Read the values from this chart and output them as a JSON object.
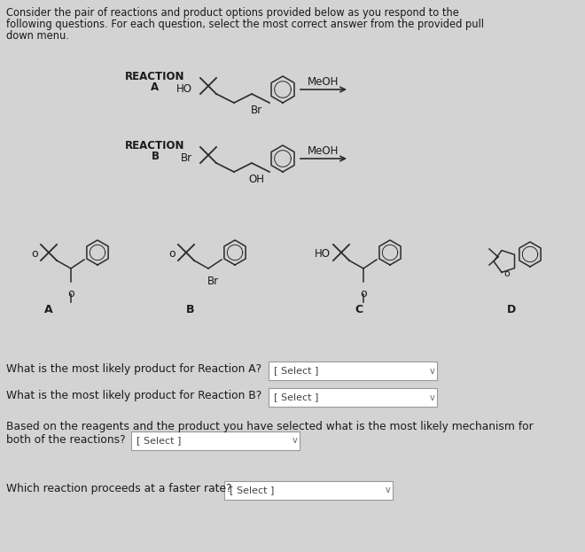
{
  "bg_color": "#d3d3d3",
  "title_line1": "Consider the pair of reactions and product options provided below as you respond to the",
  "title_line2": "following questions. For each question, select the most correct answer from the provided pull",
  "title_line3": "down menu.",
  "reaction_a_label1": "REACTION",
  "reaction_a_label2": "A",
  "reaction_b_label1": "REACTION",
  "reaction_b_label2": "B",
  "meoh": "MeOH",
  "ho": "HO",
  "br": "Br",
  "oh": "OH",
  "product_labels": [
    "A",
    "B",
    "C",
    "D"
  ],
  "q1": "What is the most likely product for Reaction A?",
  "q2": "What is the most likely product for Reaction B?",
  "q3a": "Based on the reagents and the product you have selected what is the most likely mechanism for",
  "q3b": "both of the reactions?",
  "q4": "Which reaction proceeds at a faster rate?",
  "select_text": "[ Select ]",
  "select_box_color": "#ffffff",
  "select_border_color": "#999999",
  "text_color": "#1a1a1a",
  "struct_color": "#2a2a2a"
}
